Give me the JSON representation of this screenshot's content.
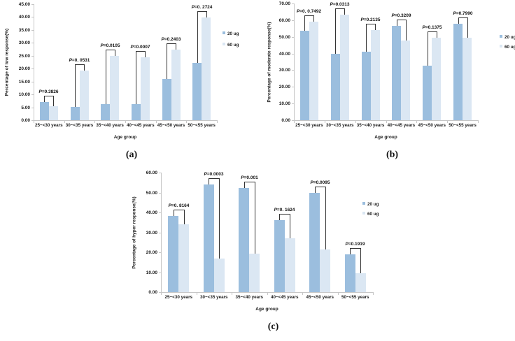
{
  "figure": {
    "palette": {
      "bar_20ug": "#9bbede",
      "bar_60ug": "#dbe7f3",
      "axis": "#c6c6c6",
      "bracket": "#333333"
    }
  },
  "chart_data": [
    {
      "type": "bar",
      "caption": "(a)",
      "ylabel": "Percentage of low response(%)",
      "xlabel": "Age group",
      "ylim": [
        0,
        45
      ],
      "ytick_step": 5,
      "grid": false,
      "legend_position": "right",
      "legend": [
        "20 ug",
        "60 ug"
      ],
      "categories": [
        "25~<30 years",
        "30~<35 years",
        "35~<40 years",
        "40~<45 years",
        "45~<50 years",
        "50~<55 years"
      ],
      "series": [
        {
          "name": "20 ug",
          "values": [
            7.0,
            5.2,
            6.1,
            6.1,
            16.0,
            22.1
          ]
        },
        {
          "name": "60 ug",
          "values": [
            5.5,
            19.3,
            24.9,
            24.3,
            27.4,
            39.9
          ]
        }
      ],
      "pvalues": [
        "P=0.3826",
        "P=0. 0531",
        "P=0.0105",
        "P=0.0007",
        "P=0.2403",
        "P=0. 2724"
      ]
    },
    {
      "type": "bar",
      "caption": "(b)",
      "ylabel": "Percentage of moderate response(%)",
      "xlabel": "Age group",
      "ylim": [
        0,
        70
      ],
      "ytick_step": 10,
      "grid": false,
      "legend_position": "right",
      "legend": [
        "20 ug",
        "60 ug"
      ],
      "categories": [
        "25~<30 years",
        "30~<35 years",
        "35~<40 years",
        "40~<45 years",
        "45~<50 years",
        "50~<55 years"
      ],
      "series": [
        {
          "name": "20 ug",
          "values": [
            53.7,
            39.8,
            41.1,
            56.5,
            32.5,
            57.9
          ]
        },
        {
          "name": "60 ug",
          "values": [
            59.1,
            63.3,
            54.2,
            47.8,
            49.5,
            49.5
          ]
        }
      ],
      "pvalues": [
        "P=0. 0.7492",
        "P=0.0313",
        "P=0.2135",
        "P=0.3209",
        "P=0.1375",
        "P=0.7990"
      ]
    },
    {
      "type": "bar",
      "caption": "(c)",
      "ylabel": "Percentage of hyper response(%)",
      "xlabel": "Age group",
      "ylim": [
        0,
        60
      ],
      "ytick_step": 10,
      "grid": false,
      "legend_position": "right",
      "legend": [
        "20 ug",
        "60 ug"
      ],
      "categories": [
        "25~<30 years",
        "30~<35 years",
        "35~<40 years",
        "40~<45 years",
        "45~<50 years",
        "50~<55 years"
      ],
      "series": [
        {
          "name": "20 ug",
          "values": [
            38.4,
            54.1,
            52.3,
            36.2,
            49.9,
            18.8
          ]
        },
        {
          "name": "60 ug",
          "values": [
            34.1,
            16.7,
            19.3,
            26.9,
            21.5,
            9.6
          ]
        }
      ],
      "pvalues": [
        "P=0. 8164",
        "P=0.0003",
        "P=0.001",
        "P=0. 1624",
        "P=0.0095",
        "P=0.1919"
      ]
    }
  ]
}
